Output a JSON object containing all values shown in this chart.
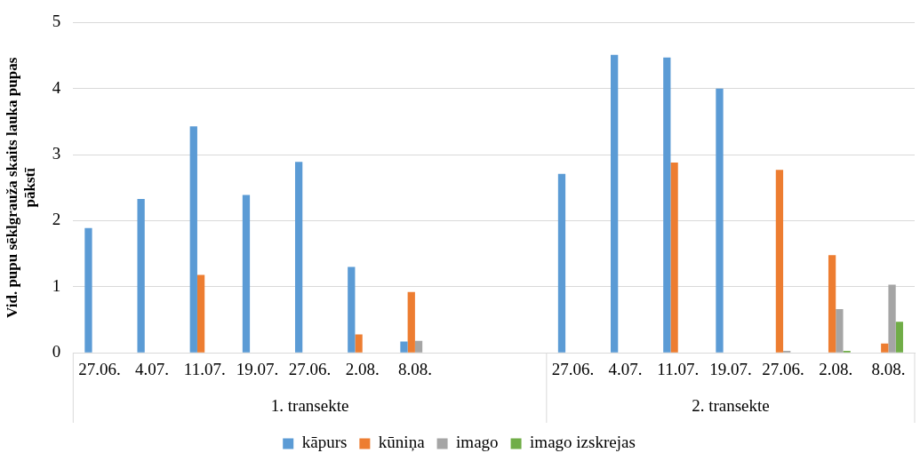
{
  "chart_data": {
    "type": "bar",
    "ylabel": "Vid. pupu sēklgrauža skaits lauka pupas pākstī",
    "categories": [
      "27.06.",
      "4.07.",
      "11.07.",
      "19.07.",
      "27.06.",
      "2.08.",
      "8.08.",
      null,
      null,
      "27.06.",
      "4.07.",
      "11.07.",
      "19.07.",
      "27.06.",
      "2.08.",
      "8.08."
    ],
    "annotations": [
      "1. transekte",
      "2. transekte"
    ],
    "series": [
      {
        "name": "kāpurs",
        "color": "#5b9bd5",
        "values": [
          1.89,
          2.33,
          3.43,
          2.39,
          2.89,
          1.3,
          0.17,
          null,
          null,
          2.71,
          4.51,
          4.47,
          4.0,
          null,
          null,
          null
        ]
      },
      {
        "name": "kūniņa",
        "color": "#ed7d31",
        "values": [
          null,
          null,
          1.18,
          null,
          null,
          0.28,
          0.92,
          null,
          null,
          null,
          null,
          2.88,
          null,
          2.77,
          1.48,
          0.14
        ]
      },
      {
        "name": "imago",
        "color": "#a5a5a5",
        "values": [
          null,
          null,
          null,
          null,
          null,
          null,
          0.18,
          null,
          null,
          null,
          null,
          null,
          null,
          0.03,
          0.66,
          1.03
        ]
      },
      {
        "name": "imago izskrejas",
        "color": "#70ad47",
        "values": [
          null,
          null,
          null,
          null,
          null,
          null,
          null,
          null,
          null,
          null,
          null,
          null,
          null,
          null,
          0.03,
          0.47
        ]
      }
    ],
    "ylim": [
      0,
      5
    ],
    "yticks": [
      0,
      1,
      2,
      3,
      4,
      5
    ],
    "grid": "y",
    "legend": "bottom"
  }
}
